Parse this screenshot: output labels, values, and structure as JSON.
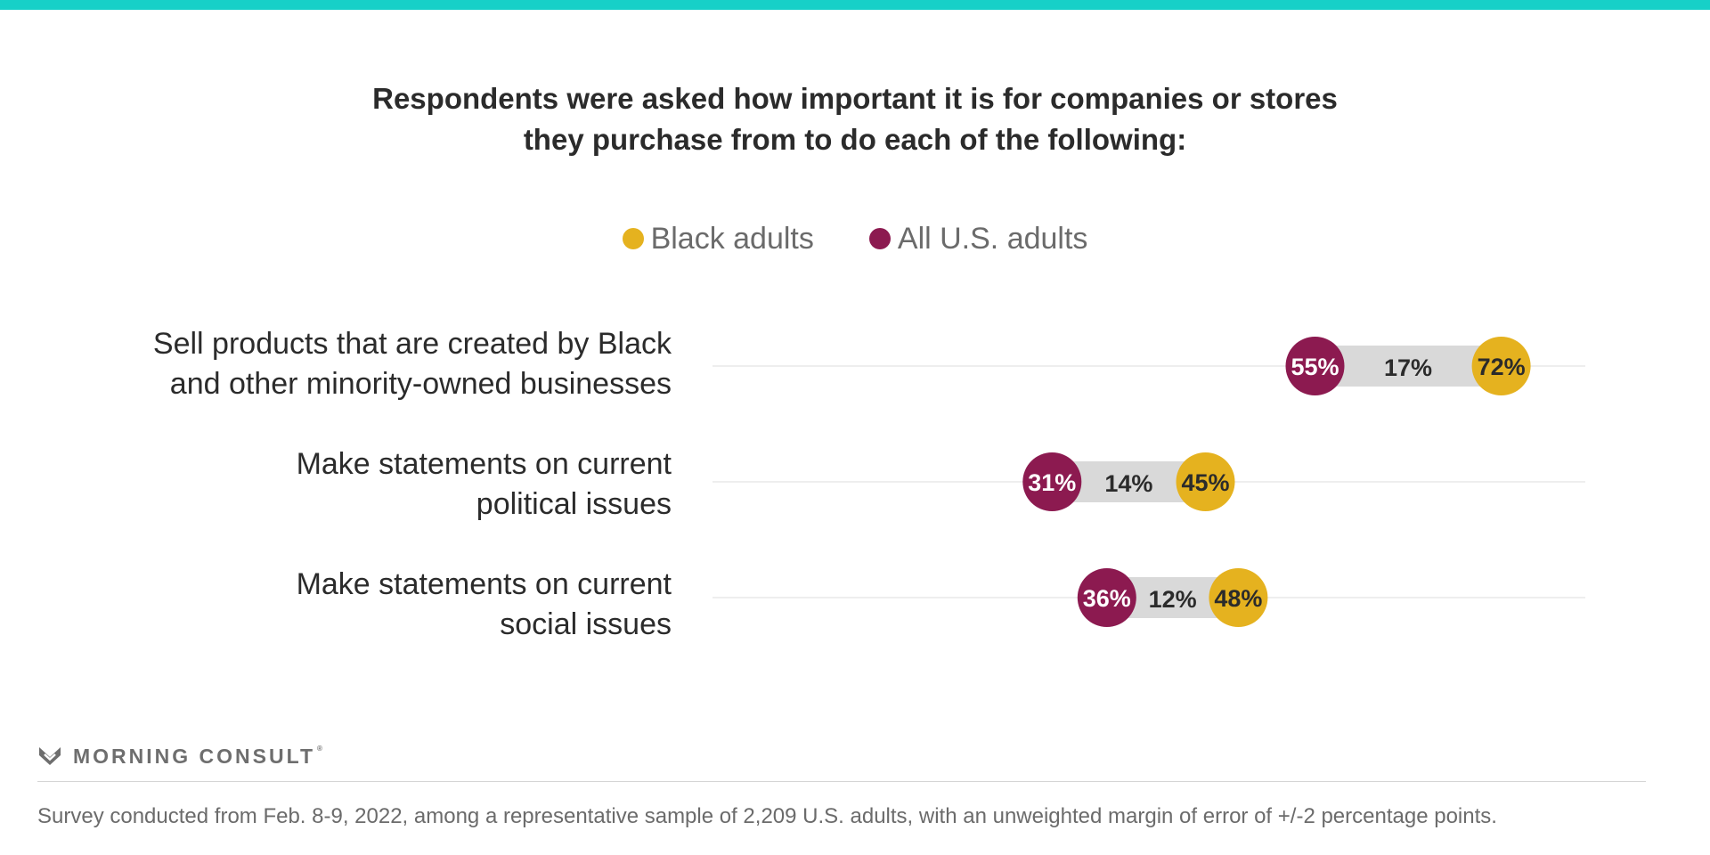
{
  "colors": {
    "top_bar": "#17d0c8",
    "black_adults": "#e5b21f",
    "all_us_adults": "#8c1a50",
    "gap_bar": "#d9d9d9",
    "gridline": "#dcdcdc",
    "label_dark": "#2b2b2b"
  },
  "chart_data": {
    "type": "dumbbell",
    "title_lines": [
      "Respondents were asked how important it is for companies or stores",
      "they purchase from to do each of the following:"
    ],
    "legend": [
      {
        "name": "Black adults",
        "color": "#e5b21f"
      },
      {
        "name": "All U.S. adults",
        "color": "#8c1a50"
      }
    ],
    "xlim": [
      0,
      100
    ],
    "grid": false,
    "legend_position": "top-center",
    "categories": [
      {
        "label_lines": [
          "Sell products that are created by Black",
          "and other minority-owned businesses"
        ],
        "all_us_adults": 55,
        "all_label": "55%",
        "black_adults": 72,
        "black_label": "72%",
        "gap_label": "17%"
      },
      {
        "label_lines": [
          "Make statements on current",
          "political issues"
        ],
        "all_us_adults": 31,
        "all_label": "31%",
        "black_adults": 45,
        "black_label": "45%",
        "gap_label": "14%"
      },
      {
        "label_lines": [
          "Make statements on current",
          "social issues"
        ],
        "all_us_adults": 36,
        "all_label": "36%",
        "black_adults": 48,
        "black_label": "48%",
        "gap_label": "12%"
      }
    ]
  },
  "branding": {
    "logo_text": "MORNING CONSULT",
    "logo_mark": "morning-consult-m-logo"
  },
  "footnote": "Survey conducted from Feb. 8-9, 2022, among a representative sample of 2,209 U.S. adults, with an unweighted margin of error of +/-2 percentage points."
}
